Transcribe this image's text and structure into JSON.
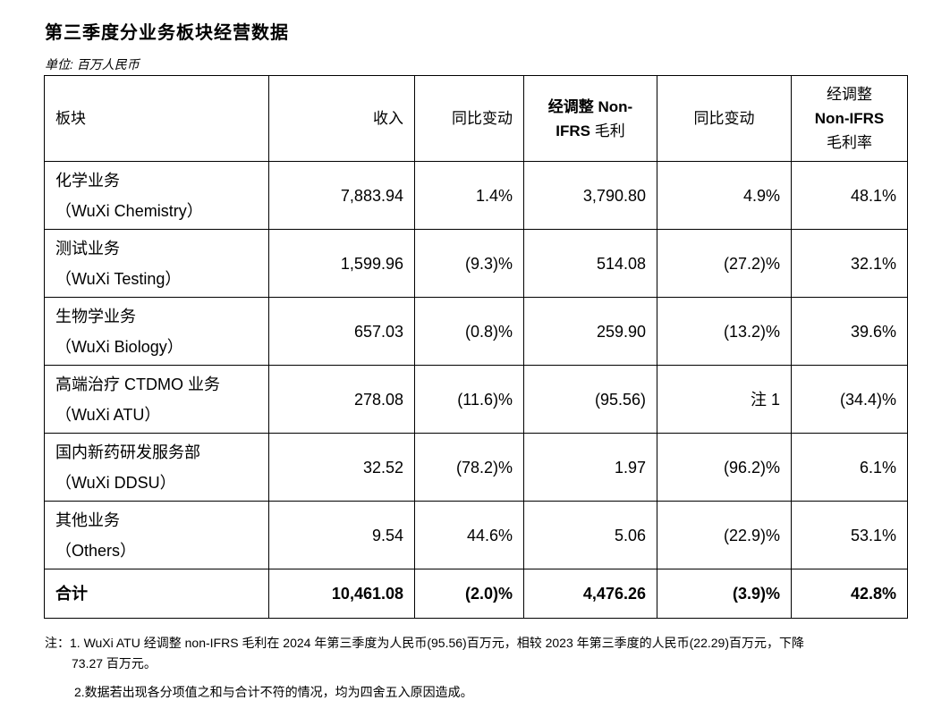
{
  "title": "第三季度分业务板块经营数据",
  "unit": "单位: 百万人民币",
  "headers": {
    "segment": "板块",
    "revenue": "收入",
    "yoy1": "同比变动",
    "gp_line1": "经调整 Non-",
    "gp_line2a": "IFRS",
    "gp_line2b": "毛利",
    "yoy2": "同比变动",
    "gm_line1": "经调整",
    "gm_line2": "Non-IFRS",
    "gm_line3": "毛利率"
  },
  "rows": [
    {
      "cn": "化学业务",
      "en": "（WuXi Chemistry）",
      "revenue": "7,883.94",
      "yoy1": "1.4%",
      "gp": "3,790.80",
      "yoy2": "4.9%",
      "gm": "48.1%"
    },
    {
      "cn": "测试业务",
      "en": "（WuXi Testing）",
      "revenue": "1,599.96",
      "yoy1": "(9.3)%",
      "gp": "514.08",
      "yoy2": "(27.2)%",
      "gm": "32.1%"
    },
    {
      "cn": "生物学业务",
      "en": "（WuXi Biology）",
      "revenue": "657.03",
      "yoy1": "(0.8)%",
      "gp": "259.90",
      "yoy2": "(13.2)%",
      "gm": "39.6%"
    },
    {
      "cn": "高端治疗 CTDMO 业务",
      "en": "（WuXi ATU）",
      "revenue": "278.08",
      "yoy1": "(11.6)%",
      "gp": "(95.56)",
      "yoy2": "注 1",
      "gm": "(34.4)%"
    },
    {
      "cn": "国内新药研发服务部",
      "en": "（WuXi DDSU）",
      "revenue": "32.52",
      "yoy1": "(78.2)%",
      "gp": "1.97",
      "yoy2": "(96.2)%",
      "gm": "6.1%"
    },
    {
      "cn": "其他业务",
      "en": "（Others）",
      "revenue": "9.54",
      "yoy1": "44.6%",
      "gp": "5.06",
      "yoy2": "(22.9)%",
      "gm": "53.1%"
    }
  ],
  "total": {
    "label": "合计",
    "revenue": "10,461.08",
    "yoy1": "(2.0)%",
    "gp": "4,476.26",
    "yoy2": "(3.9)%",
    "gm": "42.8%"
  },
  "notes": {
    "note1_line1": "注：1. WuXi ATU 经调整 non-IFRS 毛利在 2024 年第三季度为人民币(95.56)百万元，相较 2023 年第三季度的人民币(22.29)百万元，下降",
    "note1_line2": "73.27 百万元。",
    "note2": "2.数据若出现各分项值之和与合计不符的情况，均为四舍五入原因造成。"
  }
}
